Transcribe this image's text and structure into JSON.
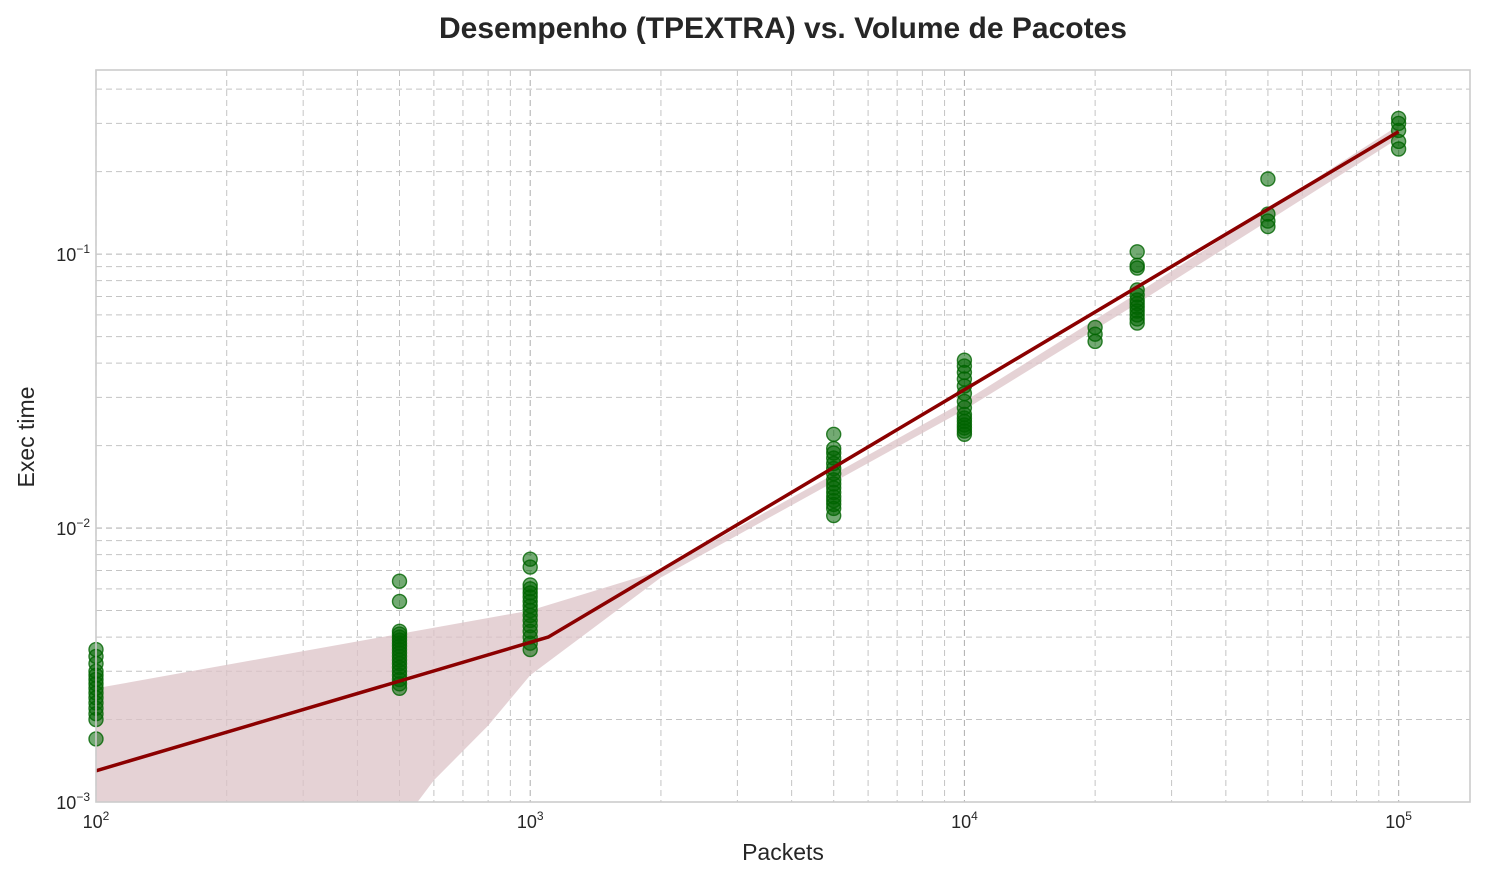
{
  "chart_data": {
    "type": "scatter",
    "title": "Desempenho (TPEXTRA) vs. Volume de Pacotes",
    "xlabel": "Packets",
    "ylabel": "Exec time",
    "xscale": "log",
    "yscale": "log",
    "xlim": [
      100,
      146000
    ],
    "ylim": [
      0.001,
      0.47
    ],
    "x_ticks": [
      {
        "value": 100,
        "base": "10",
        "exp": "2"
      },
      {
        "value": 1000,
        "base": "10",
        "exp": "3"
      },
      {
        "value": 10000,
        "base": "10",
        "exp": "4"
      },
      {
        "value": 100000,
        "base": "10",
        "exp": "5"
      }
    ],
    "y_ticks": [
      {
        "value": 0.001,
        "base": "10",
        "exp": "−3"
      },
      {
        "value": 0.01,
        "base": "10",
        "exp": "−2"
      },
      {
        "value": 0.1,
        "base": "10",
        "exp": "−1"
      }
    ],
    "grid": true,
    "colors": {
      "points": "#006400",
      "fit_line": "#8b0000",
      "confidence_band": "#dcc3c7"
    },
    "series": [
      {
        "type": "scatter",
        "points": [
          [
            100,
            0.0017
          ],
          [
            100,
            0.002
          ],
          [
            100,
            0.0021
          ],
          [
            100,
            0.0022
          ],
          [
            100,
            0.0023
          ],
          [
            100,
            0.0024
          ],
          [
            100,
            0.0025
          ],
          [
            100,
            0.0026
          ],
          [
            100,
            0.0027
          ],
          [
            100,
            0.0028
          ],
          [
            100,
            0.0029
          ],
          [
            100,
            0.003
          ],
          [
            100,
            0.0032
          ],
          [
            100,
            0.0034
          ],
          [
            100,
            0.0036
          ],
          [
            500,
            0.0026
          ],
          [
            500,
            0.0027
          ],
          [
            500,
            0.0028
          ],
          [
            500,
            0.0029
          ],
          [
            500,
            0.003
          ],
          [
            500,
            0.0031
          ],
          [
            500,
            0.0032
          ],
          [
            500,
            0.0033
          ],
          [
            500,
            0.0034
          ],
          [
            500,
            0.0035
          ],
          [
            500,
            0.0036
          ],
          [
            500,
            0.0037
          ],
          [
            500,
            0.0038
          ],
          [
            500,
            0.0039
          ],
          [
            500,
            0.004
          ],
          [
            500,
            0.0041
          ],
          [
            500,
            0.0042
          ],
          [
            500,
            0.0054
          ],
          [
            500,
            0.0064
          ],
          [
            1000,
            0.0036
          ],
          [
            1000,
            0.0038
          ],
          [
            1000,
            0.004
          ],
          [
            1000,
            0.0042
          ],
          [
            1000,
            0.0044
          ],
          [
            1000,
            0.0046
          ],
          [
            1000,
            0.0048
          ],
          [
            1000,
            0.005
          ],
          [
            1000,
            0.0052
          ],
          [
            1000,
            0.0054
          ],
          [
            1000,
            0.0056
          ],
          [
            1000,
            0.0058
          ],
          [
            1000,
            0.006
          ],
          [
            1000,
            0.0062
          ],
          [
            1000,
            0.0072
          ],
          [
            1000,
            0.0077
          ],
          [
            5000,
            0.0111
          ],
          [
            5000,
            0.0118
          ],
          [
            5000,
            0.0122
          ],
          [
            5000,
            0.0126
          ],
          [
            5000,
            0.013
          ],
          [
            5000,
            0.0135
          ],
          [
            5000,
            0.014
          ],
          [
            5000,
            0.0145
          ],
          [
            5000,
            0.015
          ],
          [
            5000,
            0.0158
          ],
          [
            5000,
            0.0165
          ],
          [
            5000,
            0.0172
          ],
          [
            5000,
            0.018
          ],
          [
            5000,
            0.0188
          ],
          [
            5000,
            0.0195
          ],
          [
            5000,
            0.022
          ],
          [
            10000,
            0.022
          ],
          [
            10000,
            0.0226
          ],
          [
            10000,
            0.0232
          ],
          [
            10000,
            0.0238
          ],
          [
            10000,
            0.0245
          ],
          [
            10000,
            0.0252
          ],
          [
            10000,
            0.026
          ],
          [
            10000,
            0.0275
          ],
          [
            10000,
            0.029
          ],
          [
            10000,
            0.031
          ],
          [
            10000,
            0.033
          ],
          [
            10000,
            0.035
          ],
          [
            10000,
            0.037
          ],
          [
            10000,
            0.039
          ],
          [
            10000,
            0.041
          ],
          [
            20000,
            0.048
          ],
          [
            20000,
            0.051
          ],
          [
            20000,
            0.054
          ],
          [
            25000,
            0.056
          ],
          [
            25000,
            0.058
          ],
          [
            25000,
            0.06
          ],
          [
            25000,
            0.062
          ],
          [
            25000,
            0.064
          ],
          [
            25000,
            0.066
          ],
          [
            25000,
            0.068
          ],
          [
            25000,
            0.071
          ],
          [
            25000,
            0.074
          ],
          [
            25000,
            0.089
          ],
          [
            25000,
            0.091
          ],
          [
            25000,
            0.102
          ],
          [
            50000,
            0.126
          ],
          [
            50000,
            0.132
          ],
          [
            50000,
            0.14
          ],
          [
            50000,
            0.188
          ],
          [
            100000,
            0.242
          ],
          [
            100000,
            0.258
          ],
          [
            100000,
            0.283
          ],
          [
            100000,
            0.3
          ],
          [
            100000,
            0.313
          ]
        ]
      },
      {
        "type": "line",
        "points": [
          [
            100,
            0.0013
          ],
          [
            1100,
            0.004
          ],
          [
            100000,
            0.28
          ]
        ]
      },
      {
        "type": "area",
        "upper": [
          [
            100,
            0.0026
          ],
          [
            1000,
            0.005
          ],
          [
            2000,
            0.007
          ],
          [
            10000,
            0.029
          ],
          [
            25000,
            0.072
          ],
          [
            100000,
            0.295
          ]
        ],
        "lower": [
          [
            100000,
            0.265
          ],
          [
            25000,
            0.066
          ],
          [
            10000,
            0.027
          ],
          [
            2000,
            0.0066
          ],
          [
            1000,
            0.0029
          ],
          [
            800,
            0.0019
          ],
          [
            600,
            0.0012
          ],
          [
            550,
            0.001
          ],
          [
            100,
            0.001
          ]
        ]
      }
    ]
  }
}
